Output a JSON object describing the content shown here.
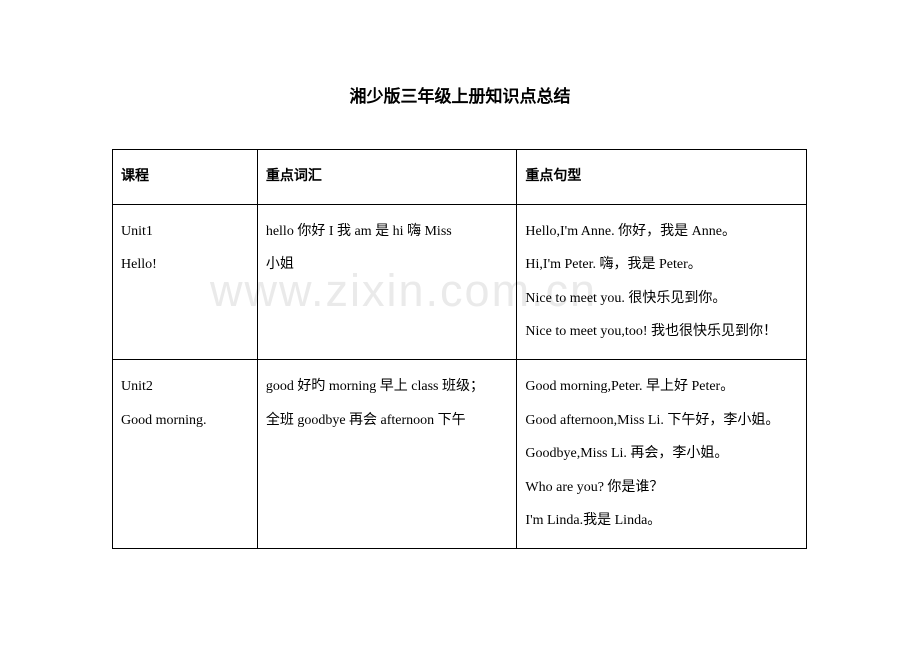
{
  "title": "湘少版三年级上册知识点总结",
  "watermark": "www.zixin.com.cn",
  "table": {
    "headers": {
      "course": "课程",
      "vocab": "重点词汇",
      "sentence": "重点句型"
    },
    "rows": [
      {
        "course_line1": "Unit1",
        "course_line2": "Hello!",
        "vocab_line1": "hello 你好    I 我    am 是    hi 嗨    Miss",
        "vocab_line2": "小姐",
        "sentence_line1": "Hello,I'm Anne.  你好，我是 Anne。",
        "sentence_line2": "Hi,I'm Peter.  嗨，我是 Peter。",
        "sentence_line3": "Nice to meet you.  很快乐见到你。",
        "sentence_line4": "Nice to meet you,too!  我也很快乐见到你！"
      },
      {
        "course_line1": "Unit2",
        "course_line2": "Good morning.",
        "vocab_line1": "good 好旳    morning 早上    class 班级；",
        "vocab_line2": "全班    goodbye 再会    afternoon 下午",
        "sentence_line1": "Good morning,Peter.  早上好 Peter。",
        "sentence_line2": "Good afternoon,Miss Li.  下午好，李小姐。",
        "sentence_line3": "Goodbye,Miss Li.  再会，李小姐。",
        "sentence_line4": "Who are you?  你是谁？",
        "sentence_line5": "I'm Linda.我是 Linda。"
      }
    ]
  },
  "colors": {
    "background": "#ffffff",
    "text": "#000000",
    "border": "#000000",
    "watermark": "#eaeaea"
  }
}
